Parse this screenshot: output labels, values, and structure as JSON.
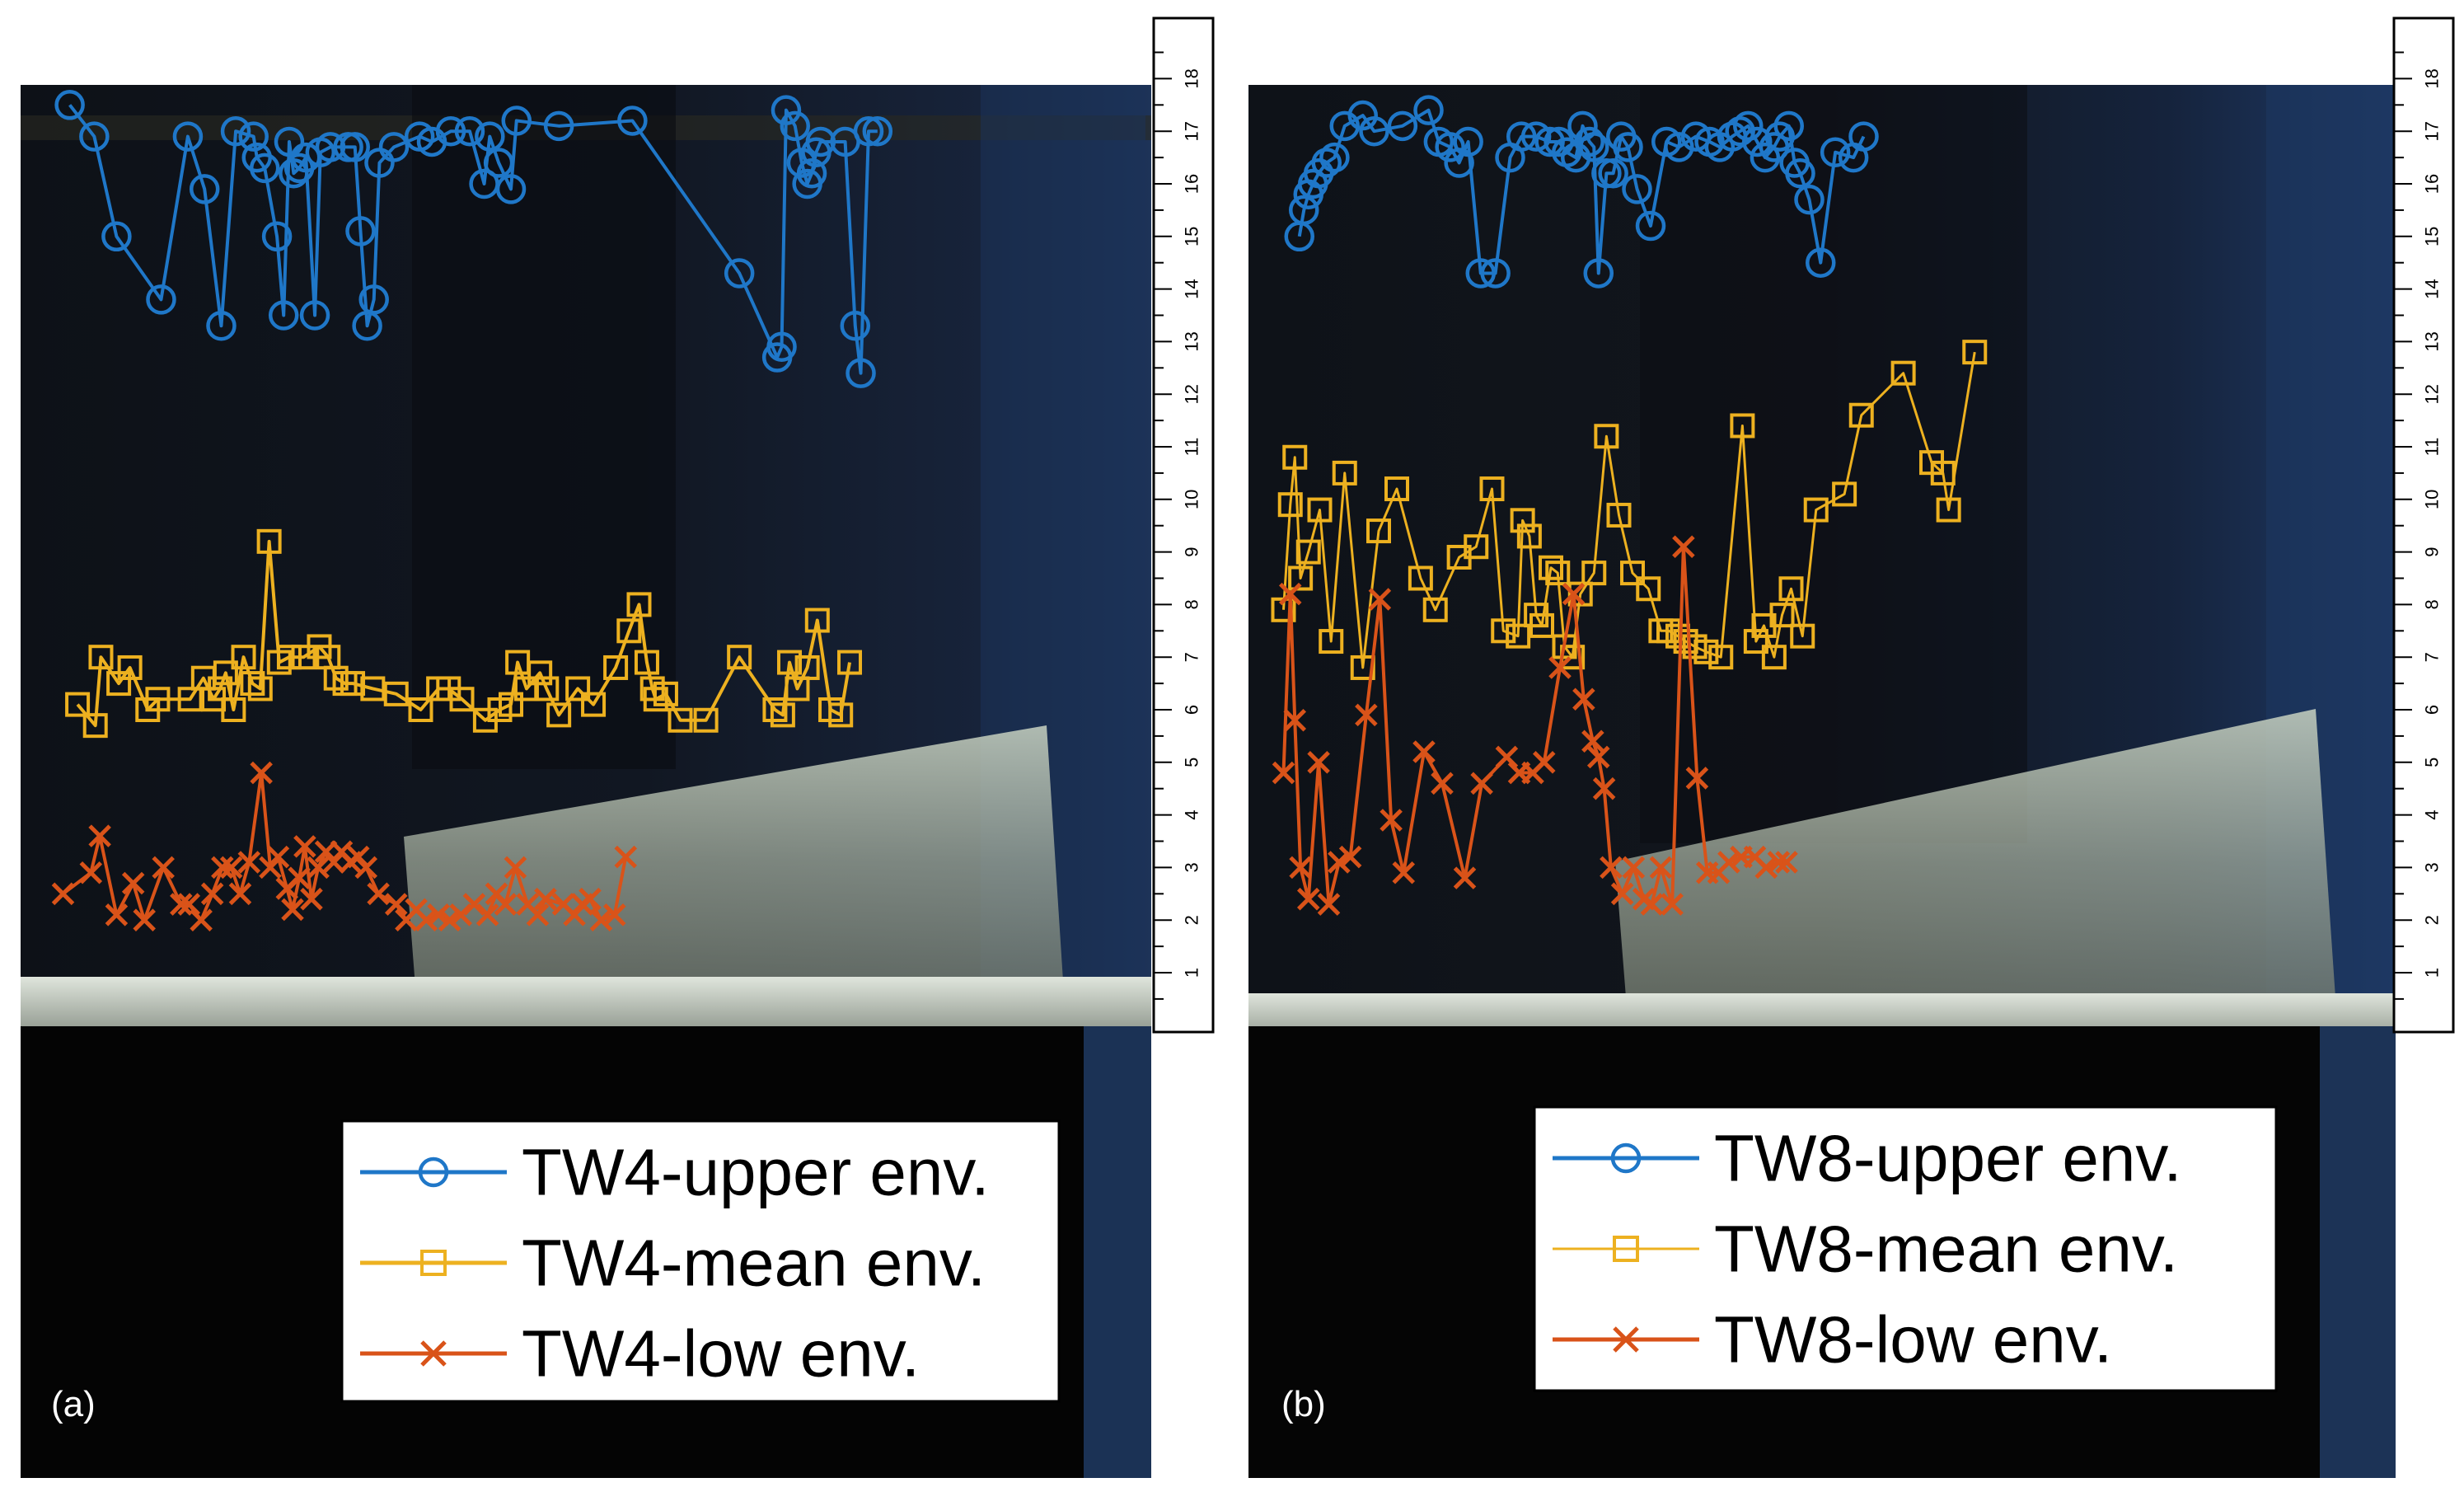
{
  "colors": {
    "upper": "#1f77c8",
    "mean": "#edb120",
    "low": "#d95319",
    "ruler_bg": "#ffffff",
    "ruler_ink": "#000000"
  },
  "ruler": {
    "ticks": [
      "1",
      "2",
      "3",
      "4",
      "5",
      "6",
      "7",
      "8",
      "9",
      "10",
      "11",
      "12",
      "13",
      "14",
      "15",
      "16",
      "17",
      "18"
    ]
  },
  "chart_data": [
    {
      "type": "line",
      "panel_label": "(a)",
      "title": "",
      "xlabel": "",
      "ylabel": "",
      "ylim": [
        0,
        19
      ],
      "x_note": "horizontal position across the frame, 0-100",
      "legend": "bottom-center",
      "series": [
        {
          "name": "TW4-upper env.",
          "key": "upper",
          "marker": "circle",
          "x": [
            3.3,
            5.5,
            7.5,
            11.5,
            13.9,
            15.4,
            16.9,
            18.2,
            19.8,
            20.1,
            20.8,
            21.9,
            22.5,
            23.0,
            23.4,
            23.9,
            24.5,
            25.3,
            25.8,
            26.7,
            28.3,
            28.9,
            29.4,
            30.0,
            30.6,
            31.1,
            32.4,
            34.7,
            35.8,
            37.5,
            39.2,
            40.5,
            41.0,
            41.8,
            42.9,
            43.4,
            47.2,
            53.8,
            63.4,
            66.8,
            67.2,
            67.6,
            68.4,
            69.0,
            69.5,
            69.9,
            70.3,
            70.7,
            72.9,
            73.8,
            74.3,
            75.0,
            75.8
          ],
          "values": [
            17.5,
            16.9,
            15.0,
            13.8,
            16.9,
            15.9,
            13.3,
            17.0,
            16.9,
            16.5,
            16.3,
            15.0,
            13.5,
            16.8,
            16.2,
            16.3,
            16.5,
            13.5,
            16.6,
            16.7,
            16.7,
            16.7,
            15.1,
            13.3,
            13.8,
            16.4,
            16.7,
            16.9,
            16.8,
            17.0,
            17.0,
            16.0,
            16.9,
            16.4,
            15.9,
            17.2,
            17.1,
            17.2,
            14.3,
            12.7,
            12.9,
            17.4,
            17.1,
            16.4,
            16.0,
            16.2,
            16.6,
            16.8,
            16.8,
            13.3,
            12.4,
            17.0,
            17.0
          ]
        },
        {
          "name": "TW4-mean env.",
          "key": "mean",
          "marker": "square",
          "x": [
            4.0,
            5.6,
            6.1,
            7.7,
            8.7,
            10.3,
            11.2,
            14.1,
            15.3,
            16.2,
            16.8,
            17.3,
            18.0,
            18.9,
            19.7,
            20.4,
            21.2,
            22.1,
            23.0,
            24.3,
            25.7,
            26.5,
            27.2,
            28.0,
            28.7,
            30.5,
            32.6,
            34.8,
            36.4,
            37.3,
            38.5,
            40.6,
            41.9,
            42.9,
            43.5,
            44.3,
            45.5,
            46.1,
            47.2,
            48.9,
            50.3,
            52.3,
            53.5,
            54.4,
            55.1,
            55.6,
            55.9,
            56.8,
            58.1,
            60.4,
            63.4,
            66.6,
            67.3,
            67.9,
            68.6,
            69.5,
            70.4,
            71.6,
            72.5,
            73.3
          ],
          "values": [
            6.1,
            5.7,
            7.0,
            6.5,
            6.8,
            6.0,
            6.2,
            6.2,
            6.6,
            6.2,
            6.4,
            6.7,
            6.0,
            7.0,
            6.5,
            6.4,
            9.2,
            6.9,
            7.0,
            7.0,
            7.2,
            7.0,
            6.6,
            6.5,
            6.5,
            6.4,
            6.3,
            6.0,
            6.4,
            6.4,
            6.2,
            5.8,
            6.0,
            6.1,
            6.9,
            6.4,
            6.7,
            6.4,
            5.9,
            6.4,
            6.1,
            6.8,
            7.5,
            8.0,
            6.9,
            6.4,
            6.2,
            6.3,
            5.8,
            5.8,
            7.0,
            6.0,
            5.9,
            6.9,
            6.4,
            6.8,
            7.7,
            6.0,
            5.9,
            6.9
          ]
        },
        {
          "name": "TW4-low env.",
          "key": "low",
          "marker": "x",
          "x": [
            2.7,
            5.2,
            6.0,
            7.5,
            9.0,
            10.0,
            11.7,
            13.3,
            14.0,
            15.1,
            16.1,
            17.0,
            17.8,
            18.6,
            19.4,
            20.5,
            21.3,
            22.0,
            22.8,
            23.3,
            23.9,
            24.4,
            25.0,
            25.6,
            26.3,
            27.0,
            27.7,
            28.5,
            29.2,
            29.9,
            31.0,
            32.6,
            33.5,
            34.4,
            35.3,
            36.4,
            37.4,
            38.4,
            39.6,
            40.8,
            41.6,
            42.4,
            43.3,
            44.4,
            45.3,
            46.0,
            47.6,
            48.6,
            49.3,
            50.0,
            51.0,
            52.2,
            53.2
          ],
          "values": [
            2.5,
            2.9,
            3.6,
            2.1,
            2.7,
            2.0,
            3.0,
            2.3,
            2.3,
            2.0,
            2.5,
            3.0,
            3.0,
            2.5,
            3.1,
            4.8,
            3.0,
            3.2,
            2.6,
            2.2,
            2.8,
            3.4,
            2.4,
            3.0,
            3.3,
            3.1,
            3.3,
            3.1,
            3.2,
            3.0,
            2.5,
            2.3,
            2.0,
            2.2,
            2.0,
            2.1,
            2.0,
            2.1,
            2.3,
            2.1,
            2.5,
            2.3,
            3.0,
            2.3,
            2.1,
            2.4,
            2.3,
            2.1,
            2.3,
            2.4,
            2.0,
            2.1,
            3.2
          ]
        }
      ]
    },
    {
      "type": "line",
      "panel_label": "(b)",
      "title": "",
      "xlabel": "",
      "ylabel": "",
      "ylim": [
        0,
        19
      ],
      "x_note": "horizontal position across the frame, 0-100",
      "legend": "bottom-center",
      "series": [
        {
          "name": "TW8-upper env.",
          "key": "upper",
          "marker": "circle",
          "x": [
            3.4,
            3.8,
            4.2,
            4.6,
            5.1,
            5.8,
            6.5,
            7.4,
            9.0,
            10.0,
            12.5,
            14.8,
            15.7,
            16.7,
            17.5,
            18.3,
            19.4,
            20.7,
            22.0,
            23.0,
            24.3,
            25.5,
            26.3,
            27.0,
            27.8,
            28.4,
            29.0,
            29.4,
            29.8,
            30.5,
            31.1,
            31.8,
            32.4,
            33.2,
            34.4,
            35.8,
            36.9,
            38.4,
            39.6,
            40.5,
            41.6,
            42.3,
            43.0,
            43.8,
            44.5,
            45.3,
            45.8,
            46.6,
            47.1,
            47.6,
            48.4,
            49.4,
            50.7,
            52.3,
            53.2
          ],
          "values": [
            15.0,
            15.5,
            15.8,
            16.0,
            16.2,
            16.4,
            16.5,
            17.1,
            17.3,
            17.0,
            17.1,
            17.4,
            16.8,
            16.7,
            16.4,
            16.8,
            14.3,
            14.3,
            16.5,
            16.9,
            16.9,
            16.8,
            16.8,
            16.6,
            16.5,
            17.1,
            16.8,
            16.7,
            14.3,
            16.2,
            16.2,
            16.9,
            16.7,
            15.9,
            15.2,
            16.8,
            16.7,
            16.9,
            16.8,
            16.7,
            16.9,
            17.0,
            17.1,
            16.8,
            16.5,
            16.7,
            16.9,
            17.1,
            16.4,
            16.2,
            15.7,
            14.5,
            16.6,
            16.5,
            16.9
          ]
        },
        {
          "name": "TW8-mean env.",
          "key": "mean",
          "marker": "square",
          "x": [
            2.0,
            2.6,
            3.0,
            3.5,
            4.2,
            5.2,
            6.2,
            7.4,
            9.0,
            10.4,
            12.0,
            14.1,
            15.4,
            17.5,
            19.0,
            20.4,
            21.4,
            22.7,
            23.1,
            23.7,
            24.3,
            24.8,
            25.6,
            26.2,
            26.8,
            27.5,
            28.2,
            29.4,
            30.5,
            31.6,
            32.8,
            34.2,
            35.3,
            36.0,
            36.8,
            37.5,
            38.3,
            39.3,
            40.6,
            42.5,
            43.7,
            44.4,
            45.3,
            46.0,
            46.8,
            47.8,
            49.0,
            51.5,
            53.0,
            56.7,
            59.2,
            60.2,
            60.7,
            63.0
          ],
          "values": [
            7.9,
            9.9,
            10.8,
            8.5,
            9.0,
            9.8,
            7.3,
            10.5,
            6.8,
            9.4,
            10.2,
            8.5,
            7.9,
            8.9,
            9.1,
            10.2,
            7.5,
            7.4,
            9.6,
            9.3,
            7.8,
            7.6,
            8.7,
            8.6,
            7.2,
            7.0,
            8.2,
            8.6,
            11.2,
            9.7,
            8.6,
            8.3,
            7.5,
            7.5,
            7.4,
            7.3,
            7.2,
            7.1,
            7.0,
            11.4,
            7.3,
            7.6,
            7.0,
            7.8,
            8.3,
            7.4,
            9.8,
            10.1,
            11.6,
            12.4,
            10.7,
            10.5,
            9.8,
            12.8
          ]
        },
        {
          "name": "TW8-low env.",
          "key": "low",
          "marker": "x",
          "x": [
            2.0,
            2.6,
            3.0,
            3.5,
            4.2,
            5.1,
            6.0,
            6.9,
            7.9,
            9.3,
            10.5,
            11.5,
            12.6,
            14.4,
            16.0,
            18.0,
            19.5,
            21.7,
            22.8,
            24.0,
            25.0,
            26.4,
            27.6,
            28.5,
            29.3,
            29.8,
            30.3,
            30.9,
            31.9,
            32.9,
            33.8,
            34.5,
            35.3,
            36.3,
            37.3,
            38.5,
            39.4,
            40.4,
            41.3,
            42.4,
            43.6,
            44.6,
            45.7,
            46.4
          ],
          "values": [
            4.8,
            8.2,
            5.8,
            3.0,
            2.4,
            5.0,
            2.3,
            3.1,
            3.2,
            5.9,
            8.1,
            3.9,
            2.9,
            5.2,
            4.6,
            2.8,
            4.6,
            5.1,
            4.8,
            4.8,
            5.0,
            6.8,
            8.2,
            6.2,
            5.4,
            5.1,
            4.5,
            3.0,
            2.5,
            3.0,
            2.4,
            2.3,
            3.0,
            2.3,
            9.1,
            4.7,
            2.9,
            2.9,
            3.1,
            3.2,
            3.2,
            3.0,
            3.1,
            3.1
          ]
        }
      ]
    }
  ],
  "panels": [
    {
      "label": "(a)",
      "legend_items": [
        {
          "label": "TW4-upper env.",
          "key": "upper",
          "marker": "circle"
        },
        {
          "label": "TW4-mean env.",
          "key": "mean",
          "marker": "square"
        },
        {
          "label": "TW4-low env.",
          "key": "low",
          "marker": "x"
        }
      ]
    },
    {
      "label": "(b)",
      "legend_items": [
        {
          "label": "TW8-upper env.",
          "key": "upper",
          "marker": "circle"
        },
        {
          "label": "TW8-mean env.",
          "key": "mean",
          "marker": "square"
        },
        {
          "label": "TW8-low env.",
          "key": "low",
          "marker": "x"
        }
      ]
    }
  ]
}
